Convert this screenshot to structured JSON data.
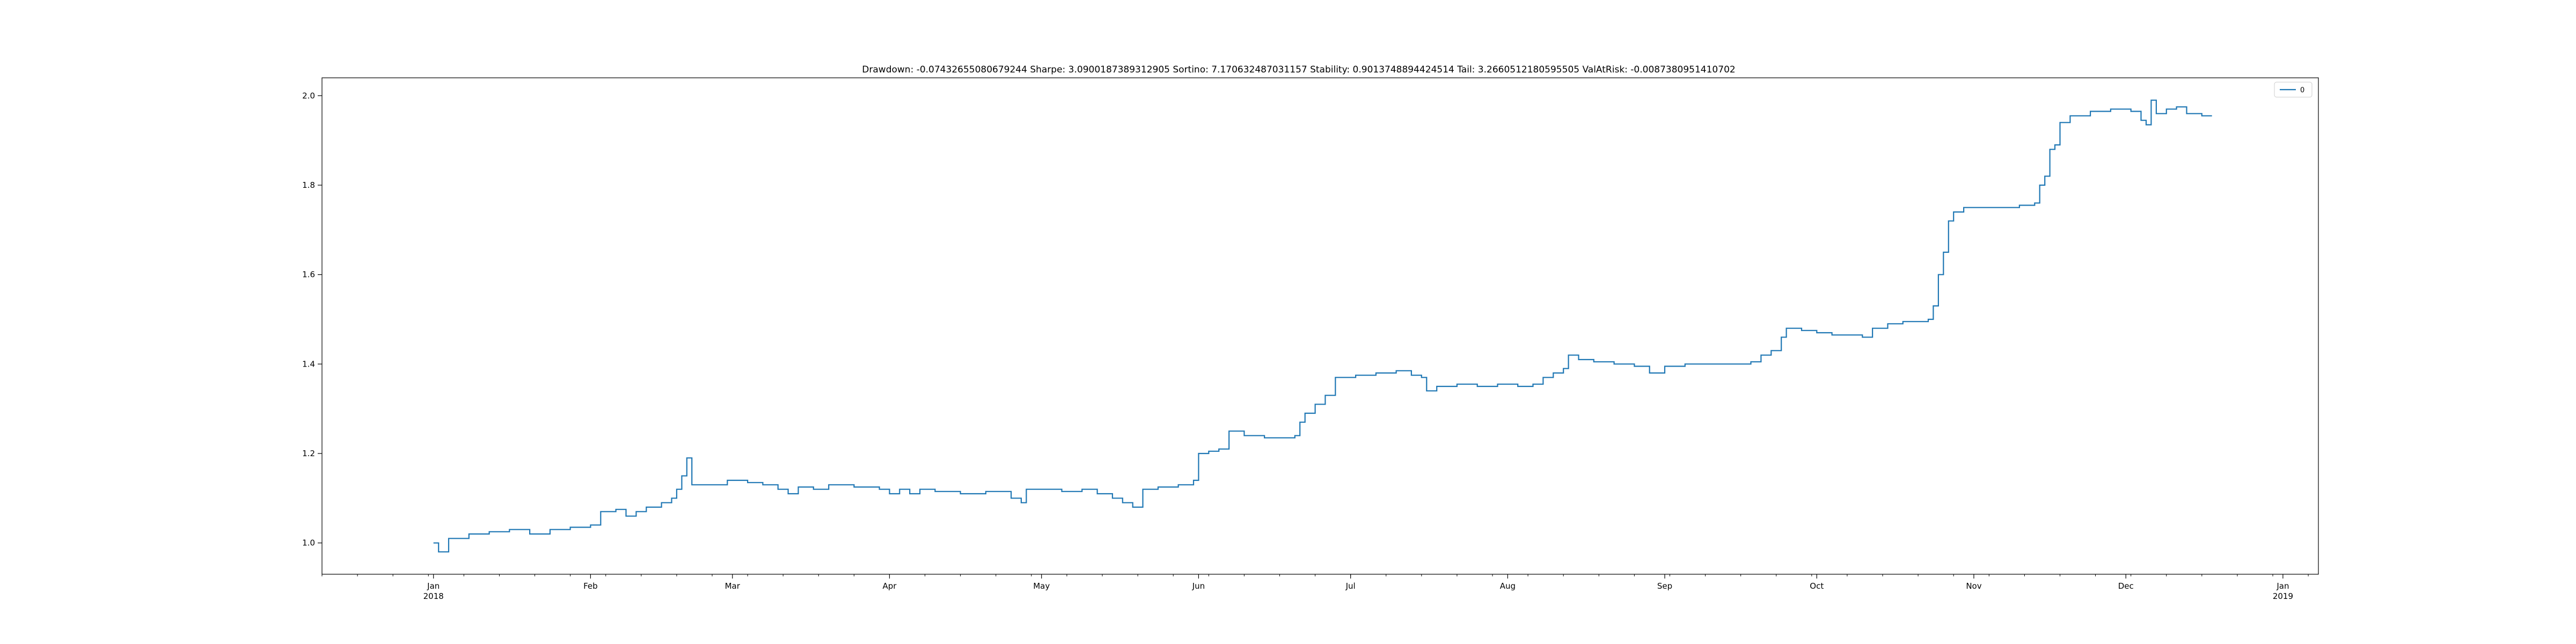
{
  "chart_data": {
    "type": "line",
    "title": "Drawdown: -0.07432655080679244 Sharpe: 3.0900187389312905 Sortino: 7.170632487031157 Stability: 0.9013748894424514 Tail: 3.2660512180595505 ValAtRisk: -0.0087380951410702",
    "xlabel": "",
    "ylabel": "",
    "x_range": [
      "2017-12-10",
      "2019-01-08"
    ],
    "ylim": [
      0.93,
      2.04
    ],
    "y_ticks": [
      1.0,
      1.2,
      1.4,
      1.6,
      1.8,
      2.0
    ],
    "y_tick_labels": [
      "1.0",
      "1.2",
      "1.4",
      "1.6",
      "1.8",
      "2.0"
    ],
    "x_ticks": [
      {
        "date": "2018-01-01",
        "label": "Jan",
        "sublabel": "2018"
      },
      {
        "date": "2018-02-01",
        "label": "Feb",
        "sublabel": ""
      },
      {
        "date": "2018-03-01",
        "label": "Mar",
        "sublabel": ""
      },
      {
        "date": "2018-04-01",
        "label": "Apr",
        "sublabel": ""
      },
      {
        "date": "2018-05-01",
        "label": "May",
        "sublabel": ""
      },
      {
        "date": "2018-06-01",
        "label": "Jun",
        "sublabel": ""
      },
      {
        "date": "2018-07-01",
        "label": "Jul",
        "sublabel": ""
      },
      {
        "date": "2018-08-01",
        "label": "Aug",
        "sublabel": ""
      },
      {
        "date": "2018-09-01",
        "label": "Sep",
        "sublabel": ""
      },
      {
        "date": "2018-10-01",
        "label": "Oct",
        "sublabel": ""
      },
      {
        "date": "2018-11-01",
        "label": "Nov",
        "sublabel": ""
      },
      {
        "date": "2018-12-01",
        "label": "Dec",
        "sublabel": ""
      },
      {
        "date": "2019-01-01",
        "label": "Jan",
        "sublabel": "2019"
      }
    ],
    "grid": false,
    "legend_position": "top-right",
    "series": [
      {
        "name": "0",
        "color": "#1f77b4",
        "points": [
          [
            "2018-01-01",
            1.0
          ],
          [
            "2018-01-02",
            0.98
          ],
          [
            "2018-01-04",
            1.01
          ],
          [
            "2018-01-08",
            1.02
          ],
          [
            "2018-01-12",
            1.025
          ],
          [
            "2018-01-16",
            1.03
          ],
          [
            "2018-01-20",
            1.02
          ],
          [
            "2018-01-24",
            1.03
          ],
          [
            "2018-01-28",
            1.035
          ],
          [
            "2018-02-01",
            1.04
          ],
          [
            "2018-02-03",
            1.07
          ],
          [
            "2018-02-06",
            1.075
          ],
          [
            "2018-02-08",
            1.06
          ],
          [
            "2018-02-10",
            1.07
          ],
          [
            "2018-02-12",
            1.08
          ],
          [
            "2018-02-15",
            1.09
          ],
          [
            "2018-02-17",
            1.1
          ],
          [
            "2018-02-18",
            1.12
          ],
          [
            "2018-02-19",
            1.15
          ],
          [
            "2018-02-20",
            1.19
          ],
          [
            "2018-02-21",
            1.13
          ],
          [
            "2018-02-24",
            1.13
          ],
          [
            "2018-02-28",
            1.14
          ],
          [
            "2018-03-04",
            1.135
          ],
          [
            "2018-03-07",
            1.13
          ],
          [
            "2018-03-10",
            1.12
          ],
          [
            "2018-03-12",
            1.11
          ],
          [
            "2018-03-14",
            1.125
          ],
          [
            "2018-03-17",
            1.12
          ],
          [
            "2018-03-20",
            1.13
          ],
          [
            "2018-03-25",
            1.125
          ],
          [
            "2018-03-30",
            1.12
          ],
          [
            "2018-04-01",
            1.11
          ],
          [
            "2018-04-03",
            1.12
          ],
          [
            "2018-04-05",
            1.11
          ],
          [
            "2018-04-07",
            1.12
          ],
          [
            "2018-04-10",
            1.115
          ],
          [
            "2018-04-15",
            1.11
          ],
          [
            "2018-04-20",
            1.115
          ],
          [
            "2018-04-25",
            1.1
          ],
          [
            "2018-04-27",
            1.09
          ],
          [
            "2018-04-28",
            1.12
          ],
          [
            "2018-05-02",
            1.12
          ],
          [
            "2018-05-05",
            1.115
          ],
          [
            "2018-05-09",
            1.12
          ],
          [
            "2018-05-12",
            1.11
          ],
          [
            "2018-05-15",
            1.1
          ],
          [
            "2018-05-17",
            1.09
          ],
          [
            "2018-05-19",
            1.08
          ],
          [
            "2018-05-21",
            1.12
          ],
          [
            "2018-05-24",
            1.125
          ],
          [
            "2018-05-28",
            1.13
          ],
          [
            "2018-05-31",
            1.14
          ],
          [
            "2018-06-01",
            1.2
          ],
          [
            "2018-06-03",
            1.205
          ],
          [
            "2018-06-05",
            1.21
          ],
          [
            "2018-06-07",
            1.25
          ],
          [
            "2018-06-10",
            1.24
          ],
          [
            "2018-06-14",
            1.235
          ],
          [
            "2018-06-18",
            1.235
          ],
          [
            "2018-06-20",
            1.24
          ],
          [
            "2018-06-21",
            1.27
          ],
          [
            "2018-06-22",
            1.29
          ],
          [
            "2018-06-24",
            1.31
          ],
          [
            "2018-06-26",
            1.33
          ],
          [
            "2018-06-28",
            1.37
          ],
          [
            "2018-07-02",
            1.375
          ],
          [
            "2018-07-06",
            1.38
          ],
          [
            "2018-07-10",
            1.385
          ],
          [
            "2018-07-13",
            1.375
          ],
          [
            "2018-07-15",
            1.37
          ],
          [
            "2018-07-16",
            1.34
          ],
          [
            "2018-07-18",
            1.35
          ],
          [
            "2018-07-22",
            1.355
          ],
          [
            "2018-07-26",
            1.35
          ],
          [
            "2018-07-30",
            1.355
          ],
          [
            "2018-08-03",
            1.35
          ],
          [
            "2018-08-06",
            1.355
          ],
          [
            "2018-08-08",
            1.37
          ],
          [
            "2018-08-10",
            1.38
          ],
          [
            "2018-08-12",
            1.39
          ],
          [
            "2018-08-13",
            1.42
          ],
          [
            "2018-08-15",
            1.41
          ],
          [
            "2018-08-18",
            1.405
          ],
          [
            "2018-08-22",
            1.4
          ],
          [
            "2018-08-26",
            1.395
          ],
          [
            "2018-08-29",
            1.38
          ],
          [
            "2018-09-01",
            1.395
          ],
          [
            "2018-09-05",
            1.4
          ],
          [
            "2018-09-10",
            1.4
          ],
          [
            "2018-09-15",
            1.4
          ],
          [
            "2018-09-18",
            1.405
          ],
          [
            "2018-09-20",
            1.42
          ],
          [
            "2018-09-22",
            1.43
          ],
          [
            "2018-09-24",
            1.46
          ],
          [
            "2018-09-25",
            1.48
          ],
          [
            "2018-09-28",
            1.475
          ],
          [
            "2018-10-01",
            1.47
          ],
          [
            "2018-10-04",
            1.465
          ],
          [
            "2018-10-07",
            1.465
          ],
          [
            "2018-10-10",
            1.46
          ],
          [
            "2018-10-12",
            1.48
          ],
          [
            "2018-10-15",
            1.49
          ],
          [
            "2018-10-18",
            1.495
          ],
          [
            "2018-10-21",
            1.495
          ],
          [
            "2018-10-23",
            1.5
          ],
          [
            "2018-10-24",
            1.53
          ],
          [
            "2018-10-25",
            1.6
          ],
          [
            "2018-10-26",
            1.65
          ],
          [
            "2018-10-27",
            1.72
          ],
          [
            "2018-10-28",
            1.74
          ],
          [
            "2018-10-30",
            1.75
          ],
          [
            "2018-11-04",
            1.75
          ],
          [
            "2018-11-10",
            1.755
          ],
          [
            "2018-11-13",
            1.76
          ],
          [
            "2018-11-14",
            1.8
          ],
          [
            "2018-11-15",
            1.82
          ],
          [
            "2018-11-16",
            1.88
          ],
          [
            "2018-11-17",
            1.89
          ],
          [
            "2018-11-18",
            1.94
          ],
          [
            "2018-11-20",
            1.955
          ],
          [
            "2018-11-24",
            1.965
          ],
          [
            "2018-11-28",
            1.97
          ],
          [
            "2018-12-02",
            1.965
          ],
          [
            "2018-12-04",
            1.945
          ],
          [
            "2018-12-05",
            1.935
          ],
          [
            "2018-12-06",
            1.99
          ],
          [
            "2018-12-07",
            1.96
          ],
          [
            "2018-12-09",
            1.97
          ],
          [
            "2018-12-11",
            1.975
          ],
          [
            "2018-12-13",
            1.96
          ],
          [
            "2018-12-16",
            1.955
          ],
          [
            "2018-12-18",
            1.955
          ]
        ]
      }
    ]
  }
}
